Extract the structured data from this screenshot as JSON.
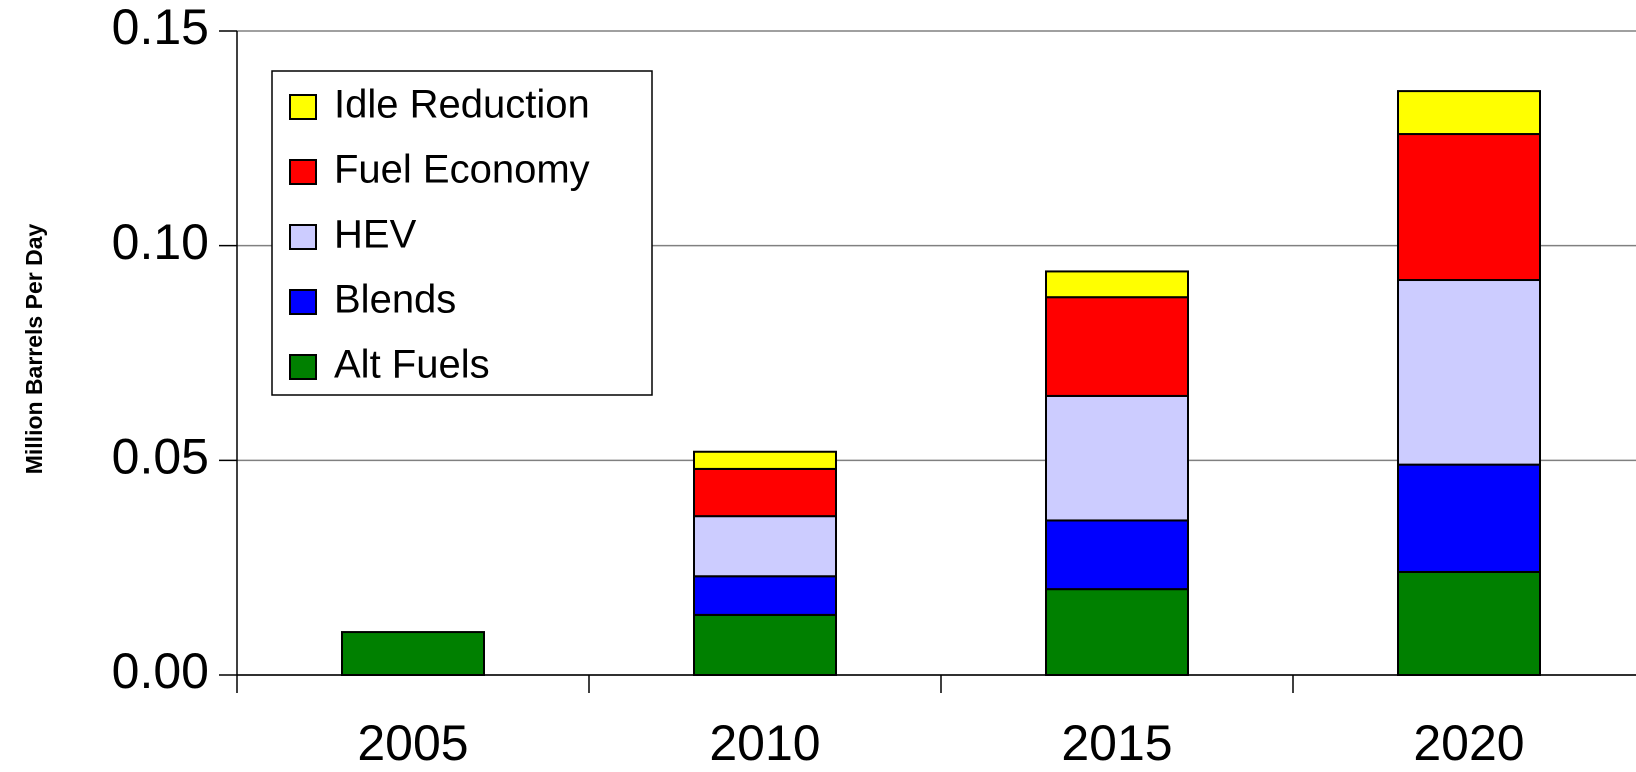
{
  "chart_data": {
    "type": "stacked_bar",
    "y_label": "Million Barrels Per Day",
    "categories": [
      "2005",
      "2010",
      "2015",
      "2020"
    ],
    "series": [
      {
        "name": "Alt Fuels",
        "color": "#008000",
        "values": [
          0.01,
          0.014,
          0.02,
          0.024
        ]
      },
      {
        "name": "Blends",
        "color": "#0000ff",
        "values": [
          0,
          0.009,
          0.016,
          0.025
        ]
      },
      {
        "name": "HEV",
        "color": "#ccccff",
        "values": [
          0,
          0.014,
          0.029,
          0.043
        ]
      },
      {
        "name": "Fuel Economy",
        "color": "#ff0000",
        "values": [
          0,
          0.011,
          0.023,
          0.034
        ]
      },
      {
        "name": "Idle Reduction",
        "color": "#ffff00",
        "values": [
          0,
          0.004,
          0.006,
          0.01
        ]
      }
    ],
    "ylim": [
      0,
      0.15
    ],
    "yticks": [
      {
        "value": 0,
        "label": "0.00"
      },
      0.05,
      {
        "value": 0.1,
        "label": "0.10"
      },
      0.15
    ],
    "grid": true,
    "legend": "upper left"
  }
}
